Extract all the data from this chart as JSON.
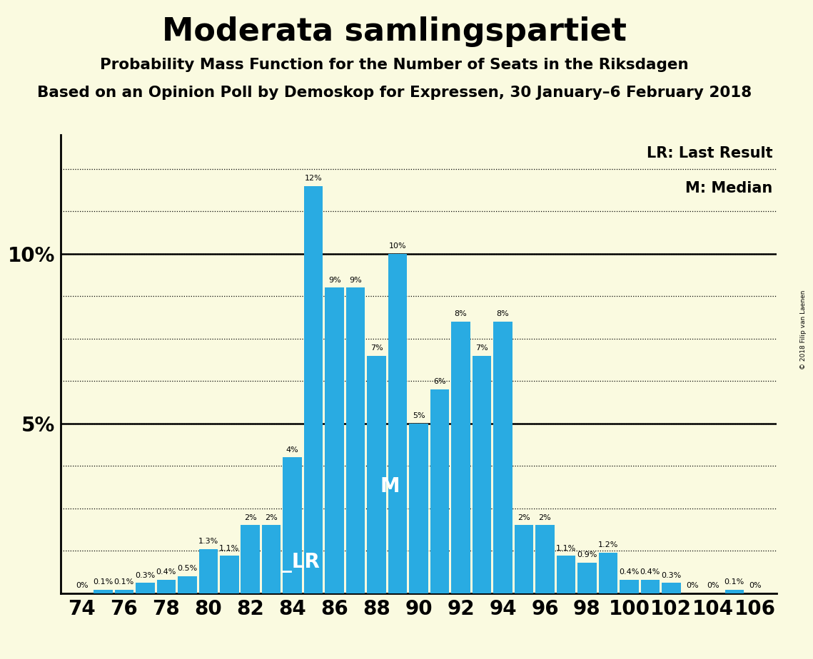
{
  "title": "Moderata samlingspartiet",
  "subtitle1": "Probability Mass Function for the Number of Seats in the Riksdagen",
  "subtitle2": "Based on an Opinion Poll by Demoskop for Expressen, 30 January–6 February 2018",
  "copyright": "© 2018 Filip van Laenen",
  "seats": [
    74,
    75,
    76,
    77,
    78,
    79,
    80,
    81,
    82,
    83,
    84,
    85,
    86,
    87,
    88,
    89,
    90,
    91,
    92,
    93,
    94,
    95,
    96,
    97,
    98,
    99,
    100,
    101,
    102,
    103,
    104,
    105,
    106
  ],
  "values": [
    0.0,
    0.1,
    0.1,
    0.3,
    0.4,
    0.5,
    1.3,
    1.1,
    2.0,
    2.0,
    4.0,
    12.0,
    9.0,
    9.0,
    7.0,
    10.0,
    5.0,
    6.0,
    8.0,
    7.0,
    8.0,
    2.0,
    2.0,
    1.1,
    0.9,
    1.2,
    0.4,
    0.4,
    0.3,
    0.0,
    0.0,
    0.1,
    0.0
  ],
  "bar_color": "#29ABE2",
  "background_color": "#FAFAE0",
  "lr_seat": 83,
  "median_seat": 88,
  "xlabel_seats": [
    74,
    76,
    78,
    80,
    82,
    84,
    86,
    88,
    90,
    92,
    94,
    96,
    98,
    100,
    102,
    104,
    106
  ],
  "ylim": [
    0,
    13.5
  ],
  "solid_yticks": [
    5.0,
    10.0
  ],
  "dotted_yticks": [
    1.25,
    2.5,
    3.75,
    6.25,
    7.5,
    8.75,
    11.25,
    12.5
  ],
  "title_fontsize": 32,
  "subtitle_fontsize": 15.5,
  "bar_label_fontsize": 8,
  "axis_tick_fontsize": 20,
  "lr_label": "_LR",
  "median_label": "M",
  "lr_legend": "LR: Last Result",
  "median_legend": "M: Median",
  "legend_fontsize": 15
}
